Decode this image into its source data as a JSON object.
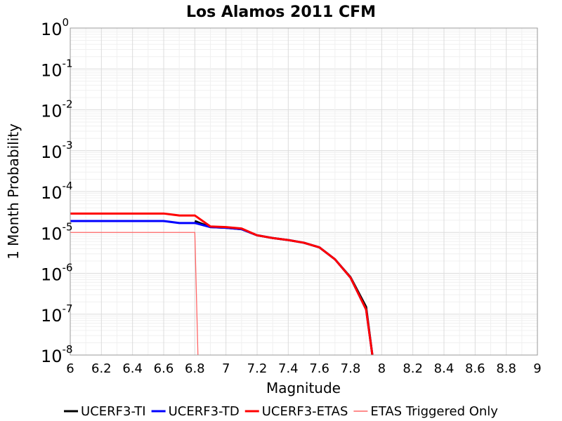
{
  "chart_data": {
    "type": "line",
    "title": "Los Alamos 2011 CFM",
    "xlabel": "Magnitude",
    "ylabel": "1 Month Probability",
    "xlim": [
      6,
      9
    ],
    "ylim": [
      1e-08,
      1
    ],
    "yscale": "log",
    "grid": true,
    "legend_position": "bottom",
    "x_ticks": [
      "6",
      "6.2",
      "6.4",
      "6.6",
      "6.8",
      "7",
      "7.2",
      "7.4",
      "7.6",
      "7.8",
      "8",
      "8.2",
      "8.4",
      "8.6",
      "8.8",
      "9"
    ],
    "y_ticks": [
      {
        "base": "10",
        "exp": "0"
      },
      {
        "base": "10",
        "exp": "-1"
      },
      {
        "base": "10",
        "exp": "-2"
      },
      {
        "base": "10",
        "exp": "-3"
      },
      {
        "base": "10",
        "exp": "-4"
      },
      {
        "base": "10",
        "exp": "-5"
      },
      {
        "base": "10",
        "exp": "-6"
      },
      {
        "base": "10",
        "exp": "-7"
      },
      {
        "base": "10",
        "exp": "-8"
      }
    ],
    "series": [
      {
        "name": "UCERF3-TI",
        "color": "#000000",
        "width": 3,
        "points": [
          [
            6.8,
            1.9e-05
          ],
          [
            6.9,
            1.35e-05
          ],
          [
            7.0,
            1.3e-05
          ],
          [
            7.1,
            1.2e-05
          ],
          [
            7.2,
            8.5e-06
          ],
          [
            7.3,
            7.3e-06
          ],
          [
            7.4,
            6.5e-06
          ],
          [
            7.5,
            5.6e-06
          ],
          [
            7.6,
            4.3e-06
          ],
          [
            7.7,
            2.2e-06
          ],
          [
            7.8,
            8e-07
          ],
          [
            7.9,
            1.5e-07
          ],
          [
            7.94,
            1e-08
          ]
        ]
      },
      {
        "name": "UCERF3-TD",
        "color": "#0000ff",
        "width": 3,
        "points": [
          [
            6.0,
            1.9e-05
          ],
          [
            6.6,
            1.9e-05
          ],
          [
            6.7,
            1.7e-05
          ],
          [
            6.8,
            1.7e-05
          ],
          [
            6.9,
            1.35e-05
          ],
          [
            7.0,
            1.3e-05
          ],
          [
            7.1,
            1.2e-05
          ],
          [
            7.2,
            8.5e-06
          ],
          [
            7.3,
            7.3e-06
          ],
          [
            7.4,
            6.5e-06
          ],
          [
            7.5,
            5.6e-06
          ],
          [
            7.6,
            4.3e-06
          ],
          [
            7.7,
            2.2e-06
          ],
          [
            7.8,
            7.8e-07
          ],
          [
            7.9,
            1.3e-07
          ],
          [
            7.94,
            1e-08
          ]
        ]
      },
      {
        "name": "UCERF3-ETAS",
        "color": "#ff0000",
        "width": 3,
        "points": [
          [
            6.0,
            2.9e-05
          ],
          [
            6.6,
            2.9e-05
          ],
          [
            6.7,
            2.6e-05
          ],
          [
            6.8,
            2.6e-05
          ],
          [
            6.9,
            1.4e-05
          ],
          [
            7.0,
            1.35e-05
          ],
          [
            7.1,
            1.25e-05
          ],
          [
            7.2,
            8.5e-06
          ],
          [
            7.3,
            7.3e-06
          ],
          [
            7.4,
            6.5e-06
          ],
          [
            7.5,
            5.6e-06
          ],
          [
            7.6,
            4.3e-06
          ],
          [
            7.7,
            2.2e-06
          ],
          [
            7.8,
            7.8e-07
          ],
          [
            7.9,
            1.3e-07
          ],
          [
            7.94,
            1e-08
          ]
        ]
      },
      {
        "name": "ETAS Triggered Only",
        "color": "#ff6666",
        "width": 1.3,
        "points": [
          [
            6.0,
            1e-05
          ],
          [
            6.8,
            1e-05
          ],
          [
            6.82,
            1e-08
          ]
        ]
      }
    ]
  }
}
